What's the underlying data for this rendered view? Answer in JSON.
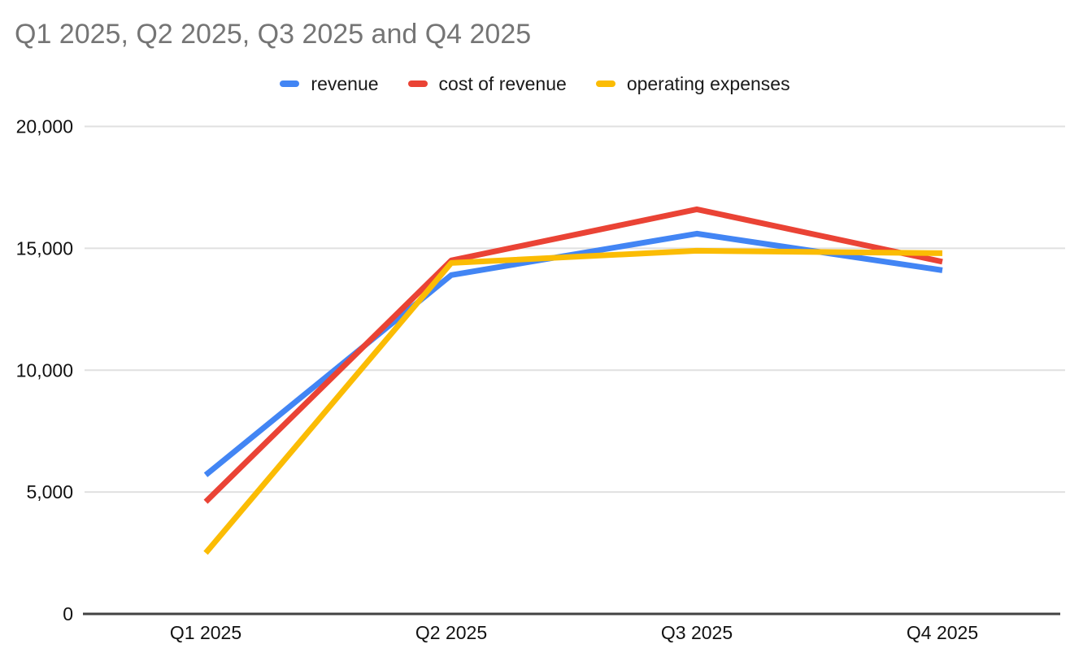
{
  "chart_data": {
    "type": "line",
    "title": "Q1 2025, Q2 2025, Q3 2025 and Q4 2025",
    "categories": [
      "Q1 2025",
      "Q2 2025",
      "Q3 2025",
      "Q4 2025"
    ],
    "series": [
      {
        "name": "revenue",
        "color": "#4285F4",
        "values": [
          5700,
          13900,
          15600,
          14100
        ]
      },
      {
        "name": "cost of revenue",
        "color": "#EA4335",
        "values": [
          4600,
          14500,
          16600,
          14450
        ]
      },
      {
        "name": "operating expenses",
        "color": "#FBBC04",
        "values": [
          2500,
          14400,
          14900,
          14800
        ]
      }
    ],
    "ylim": [
      0,
      20000
    ],
    "yticks": [
      {
        "value": 0,
        "label": "0"
      },
      {
        "value": 5000,
        "label": "5,000"
      },
      {
        "value": 10000,
        "label": "10,000"
      },
      {
        "value": 15000,
        "label": "15,000"
      },
      {
        "value": 20000,
        "label": "20,000"
      }
    ],
    "grid": true,
    "legend_position": "top",
    "xlabel": "",
    "ylabel": ""
  },
  "colors": {
    "background": "#ffffff",
    "title_text": "#757575",
    "axis_text": "#111111",
    "gridline": "#e0e0e0",
    "axis_line": "#424242",
    "legend_text": "#1a1a1a"
  }
}
